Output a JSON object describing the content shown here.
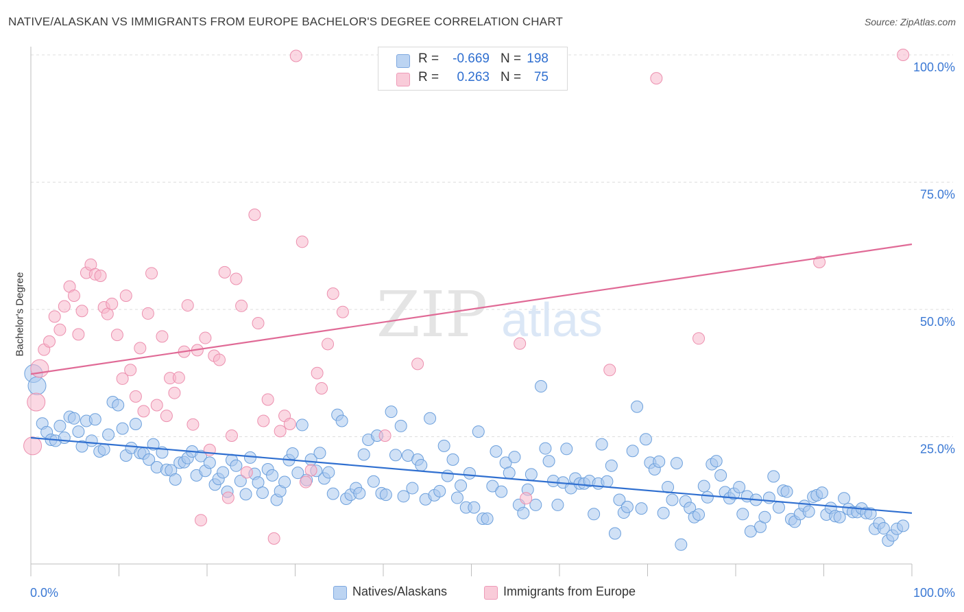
{
  "header": {
    "title": "NATIVE/ALASKAN VS IMMIGRANTS FROM EUROPE BACHELOR'S DEGREE CORRELATION CHART",
    "source": "Source: ZipAtlas.com"
  },
  "watermark": {
    "zip": "ZIP",
    "atlas": "atlas"
  },
  "stats_legend": {
    "rows": [
      {
        "r_label": "R =",
        "r_value": "-0.669",
        "n_label": "N =",
        "n_value": "198",
        "color": "#9fc3ef"
      },
      {
        "r_label": "R =",
        "r_value": "0.263",
        "n_label": "N =",
        "n_value": "75",
        "color": "#f4aec4"
      }
    ]
  },
  "bottom_legend": {
    "items": [
      {
        "label": "Natives/Alaskans",
        "color": "#9fc3ef"
      },
      {
        "label": "Immigrants from Europe",
        "color": "#f4aec4"
      }
    ]
  },
  "colors": {
    "blue_fill": "#a9c8ee",
    "blue_stroke": "#6b9fdc",
    "blue_line": "#2f6fd0",
    "pink_fill": "#f7b8cc",
    "pink_stroke": "#ec8fae",
    "pink_line": "#e06a96",
    "tick_label": "#3a78d4",
    "grid": "#dddddd"
  },
  "chart_data": {
    "type": "scatter",
    "title": "NATIVE/ALASKAN VS IMMIGRANTS FROM EUROPE BACHELOR'S DEGREE CORRELATION CHART",
    "xlabel": "",
    "ylabel": "Bachelor's Degree",
    "xlim": [
      0,
      100
    ],
    "ylim": [
      0,
      100
    ],
    "x_tick_labels": [
      "0.0%",
      "100.0%"
    ],
    "y_tick_labels": [
      "25.0%",
      "50.0%",
      "75.0%",
      "100.0%"
    ],
    "y_tick_values": [
      25,
      50,
      75,
      100
    ],
    "grid": true,
    "legend_position": "top-center",
    "series": [
      {
        "name": "Natives/Alaskans",
        "r": -0.669,
        "n": 198,
        "trend": [
          [
            0,
            24.8
          ],
          [
            100,
            10.0
          ]
        ],
        "points": [
          [
            0.3,
            37.4
          ],
          [
            0.7,
            35.0
          ],
          [
            1.3,
            27.6
          ],
          [
            1.8,
            25.9
          ],
          [
            2.3,
            24.4
          ],
          [
            2.8,
            24.2
          ],
          [
            3.3,
            27.1
          ],
          [
            3.8,
            24.8
          ],
          [
            4.4,
            28.9
          ],
          [
            4.9,
            28.6
          ],
          [
            5.4,
            26.0
          ],
          [
            5.8,
            23.1
          ],
          [
            6.3,
            28.1
          ],
          [
            6.9,
            24.2
          ],
          [
            7.3,
            28.4
          ],
          [
            7.8,
            22.1
          ],
          [
            8.3,
            22.5
          ],
          [
            8.8,
            25.4
          ],
          [
            9.3,
            31.8
          ],
          [
            9.9,
            31.2
          ],
          [
            10.4,
            26.6
          ],
          [
            10.8,
            21.3
          ],
          [
            11.4,
            22.8
          ],
          [
            11.9,
            27.5
          ],
          [
            12.4,
            21.8
          ],
          [
            12.8,
            21.7
          ],
          [
            13.4,
            20.5
          ],
          [
            13.9,
            23.5
          ],
          [
            14.3,
            19.0
          ],
          [
            14.9,
            21.9
          ],
          [
            15.4,
            18.5
          ],
          [
            15.9,
            18.4
          ],
          [
            16.4,
            16.6
          ],
          [
            16.9,
            19.9
          ],
          [
            17.4,
            20.0
          ],
          [
            17.8,
            20.8
          ],
          [
            18.3,
            22.1
          ],
          [
            18.8,
            17.4
          ],
          [
            19.3,
            21.2
          ],
          [
            19.8,
            18.3
          ],
          [
            20.3,
            19.9
          ],
          [
            20.9,
            15.6
          ],
          [
            21.3,
            16.7
          ],
          [
            21.8,
            18.0
          ],
          [
            22.3,
            14.2
          ],
          [
            22.8,
            20.4
          ],
          [
            23.3,
            19.3
          ],
          [
            23.8,
            16.3
          ],
          [
            24.4,
            13.7
          ],
          [
            24.9,
            20.9
          ],
          [
            25.4,
            17.7
          ],
          [
            25.8,
            16.0
          ],
          [
            26.3,
            14.0
          ],
          [
            26.9,
            18.6
          ],
          [
            27.4,
            17.4
          ],
          [
            27.9,
            12.6
          ],
          [
            28.3,
            14.3
          ],
          [
            28.8,
            16.1
          ],
          [
            29.3,
            20.4
          ],
          [
            29.7,
            21.7
          ],
          [
            30.3,
            17.9
          ],
          [
            30.8,
            27.3
          ],
          [
            31.3,
            16.5
          ],
          [
            31.8,
            20.5
          ],
          [
            32.4,
            18.3
          ],
          [
            32.8,
            21.8
          ],
          [
            33.3,
            16.8
          ],
          [
            33.8,
            18.0
          ],
          [
            34.3,
            13.8
          ],
          [
            34.8,
            29.3
          ],
          [
            35.3,
            28.1
          ],
          [
            35.8,
            12.8
          ],
          [
            36.3,
            13.6
          ],
          [
            36.9,
            14.9
          ],
          [
            37.3,
            13.9
          ],
          [
            37.8,
            21.5
          ],
          [
            38.3,
            24.4
          ],
          [
            38.9,
            16.2
          ],
          [
            39.3,
            25.2
          ],
          [
            39.8,
            13.9
          ],
          [
            40.3,
            13.6
          ],
          [
            40.9,
            29.9
          ],
          [
            41.4,
            21.4
          ],
          [
            42.0,
            27.1
          ],
          [
            42.3,
            13.3
          ],
          [
            42.8,
            21.3
          ],
          [
            43.3,
            14.9
          ],
          [
            43.9,
            20.5
          ],
          [
            44.3,
            19.4
          ],
          [
            44.8,
            12.7
          ],
          [
            45.3,
            28.6
          ],
          [
            45.8,
            13.5
          ],
          [
            46.4,
            14.3
          ],
          [
            46.9,
            23.2
          ],
          [
            47.3,
            17.3
          ],
          [
            47.9,
            20.5
          ],
          [
            48.4,
            13.0
          ],
          [
            48.8,
            15.4
          ],
          [
            49.4,
            11.1
          ],
          [
            49.8,
            17.8
          ],
          [
            50.3,
            11.1
          ],
          [
            50.8,
            26.0
          ],
          [
            51.3,
            8.9
          ],
          [
            51.8,
            8.9
          ],
          [
            52.4,
            15.3
          ],
          [
            52.8,
            22.1
          ],
          [
            53.4,
            14.2
          ],
          [
            53.9,
            19.9
          ],
          [
            54.3,
            17.9
          ],
          [
            54.9,
            21.0
          ],
          [
            55.4,
            11.6
          ],
          [
            55.9,
            10.0
          ],
          [
            56.4,
            14.6
          ],
          [
            56.8,
            17.6
          ],
          [
            57.3,
            11.6
          ],
          [
            57.9,
            34.9
          ],
          [
            58.4,
            22.7
          ],
          [
            58.8,
            20.2
          ],
          [
            59.3,
            16.3
          ],
          [
            59.8,
            11.6
          ],
          [
            60.4,
            16.0
          ],
          [
            60.8,
            22.6
          ],
          [
            61.3,
            14.9
          ],
          [
            61.8,
            16.8
          ],
          [
            62.3,
            15.8
          ],
          [
            62.8,
            15.8
          ],
          [
            63.4,
            16.3
          ],
          [
            63.9,
            9.8
          ],
          [
            64.4,
            15.8
          ],
          [
            64.8,
            23.5
          ],
          [
            65.4,
            16.2
          ],
          [
            65.9,
            19.3
          ],
          [
            66.3,
            6.0
          ],
          [
            66.8,
            12.6
          ],
          [
            67.3,
            10.1
          ],
          [
            67.7,
            11.2
          ],
          [
            68.3,
            22.2
          ],
          [
            68.8,
            30.9
          ],
          [
            69.3,
            10.9
          ],
          [
            69.8,
            24.5
          ],
          [
            70.3,
            19.9
          ],
          [
            70.8,
            18.6
          ],
          [
            71.3,
            20.1
          ],
          [
            71.8,
            10.0
          ],
          [
            72.3,
            15.1
          ],
          [
            72.8,
            12.6
          ],
          [
            73.3,
            19.8
          ],
          [
            73.8,
            3.8
          ],
          [
            74.3,
            12.3
          ],
          [
            74.8,
            11.0
          ],
          [
            75.3,
            9.2
          ],
          [
            75.8,
            9.7
          ],
          [
            76.4,
            15.3
          ],
          [
            76.8,
            13.1
          ],
          [
            77.3,
            19.6
          ],
          [
            77.8,
            20.2
          ],
          [
            78.3,
            17.4
          ],
          [
            78.8,
            14.1
          ],
          [
            79.3,
            12.9
          ],
          [
            79.8,
            13.8
          ],
          [
            80.4,
            15.1
          ],
          [
            80.8,
            9.8
          ],
          [
            81.3,
            13.3
          ],
          [
            81.7,
            6.4
          ],
          [
            82.3,
            12.6
          ],
          [
            82.8,
            7.3
          ],
          [
            83.3,
            9.2
          ],
          [
            83.8,
            13.0
          ],
          [
            84.3,
            17.2
          ],
          [
            84.9,
            11.1
          ],
          [
            85.4,
            14.4
          ],
          [
            85.8,
            14.2
          ],
          [
            86.3,
            8.8
          ],
          [
            86.7,
            8.3
          ],
          [
            87.3,
            9.8
          ],
          [
            87.8,
            11.4
          ],
          [
            88.3,
            10.3
          ],
          [
            88.8,
            13.2
          ],
          [
            89.2,
            13.5
          ],
          [
            89.8,
            14.0
          ],
          [
            90.3,
            9.7
          ],
          [
            90.8,
            11.0
          ],
          [
            91.3,
            9.4
          ],
          [
            91.8,
            9.2
          ],
          [
            92.3,
            12.9
          ],
          [
            92.8,
            10.8
          ],
          [
            93.3,
            10.2
          ],
          [
            93.8,
            10.2
          ],
          [
            94.3,
            10.9
          ],
          [
            94.8,
            10.0
          ],
          [
            95.3,
            9.9
          ],
          [
            95.8,
            6.9
          ],
          [
            96.3,
            8.0
          ],
          [
            96.8,
            7.0
          ],
          [
            97.3,
            4.6
          ],
          [
            97.8,
            5.6
          ],
          [
            98.3,
            6.9
          ],
          [
            99.0,
            7.5
          ]
        ]
      },
      {
        "name": "Immigrants from Europe",
        "r": 0.263,
        "n": 75,
        "trend": [
          [
            0,
            37.3
          ],
          [
            100,
            62.8
          ]
        ],
        "points": [
          [
            0.2,
            23.2
          ],
          [
            0.6,
            31.8
          ],
          [
            1.0,
            38.4
          ],
          [
            1.5,
            42.1
          ],
          [
            2.1,
            43.7
          ],
          [
            2.7,
            48.6
          ],
          [
            3.3,
            46.0
          ],
          [
            3.8,
            50.6
          ],
          [
            4.4,
            54.5
          ],
          [
            4.9,
            52.7
          ],
          [
            5.4,
            45.1
          ],
          [
            5.8,
            49.7
          ],
          [
            6.3,
            57.2
          ],
          [
            6.8,
            58.8
          ],
          [
            7.3,
            56.9
          ],
          [
            7.9,
            56.6
          ],
          [
            8.3,
            50.4
          ],
          [
            8.7,
            49.1
          ],
          [
            9.2,
            51.1
          ],
          [
            9.8,
            45.0
          ],
          [
            10.4,
            36.4
          ],
          [
            10.8,
            52.7
          ],
          [
            11.3,
            38.1
          ],
          [
            11.9,
            32.9
          ],
          [
            12.4,
            42.4
          ],
          [
            12.8,
            30.0
          ],
          [
            13.3,
            49.2
          ],
          [
            13.7,
            57.1
          ],
          [
            14.3,
            31.2
          ],
          [
            14.9,
            44.7
          ],
          [
            15.4,
            29.1
          ],
          [
            15.8,
            36.5
          ],
          [
            16.3,
            33.6
          ],
          [
            16.8,
            36.6
          ],
          [
            17.4,
            41.7
          ],
          [
            17.8,
            50.8
          ],
          [
            18.4,
            27.4
          ],
          [
            18.9,
            42.0
          ],
          [
            19.3,
            8.6
          ],
          [
            19.8,
            44.4
          ],
          [
            20.3,
            22.4
          ],
          [
            20.8,
            40.9
          ],
          [
            21.4,
            40.1
          ],
          [
            22.0,
            57.3
          ],
          [
            22.4,
            13.0
          ],
          [
            22.8,
            25.2
          ],
          [
            23.3,
            56.0
          ],
          [
            23.9,
            50.7
          ],
          [
            24.5,
            18.0
          ],
          [
            25.4,
            68.6
          ],
          [
            25.8,
            47.3
          ],
          [
            26.4,
            28.1
          ],
          [
            26.9,
            32.3
          ],
          [
            27.6,
            5.0
          ],
          [
            28.3,
            26.1
          ],
          [
            28.8,
            29.1
          ],
          [
            29.4,
            27.5
          ],
          [
            30.1,
            99.8
          ],
          [
            30.8,
            63.3
          ],
          [
            31.2,
            16.1
          ],
          [
            31.8,
            18.4
          ],
          [
            32.5,
            37.5
          ],
          [
            33.0,
            34.5
          ],
          [
            33.7,
            43.2
          ],
          [
            34.3,
            53.1
          ],
          [
            35.4,
            49.5
          ],
          [
            40.2,
            25.2
          ],
          [
            43.9,
            39.3
          ],
          [
            55.5,
            43.3
          ],
          [
            56.2,
            12.9
          ],
          [
            71.0,
            95.4
          ],
          [
            75.8,
            44.3
          ],
          [
            89.5,
            59.3
          ],
          [
            99.0,
            100.0
          ],
          [
            65.7,
            38.1
          ]
        ]
      }
    ]
  }
}
